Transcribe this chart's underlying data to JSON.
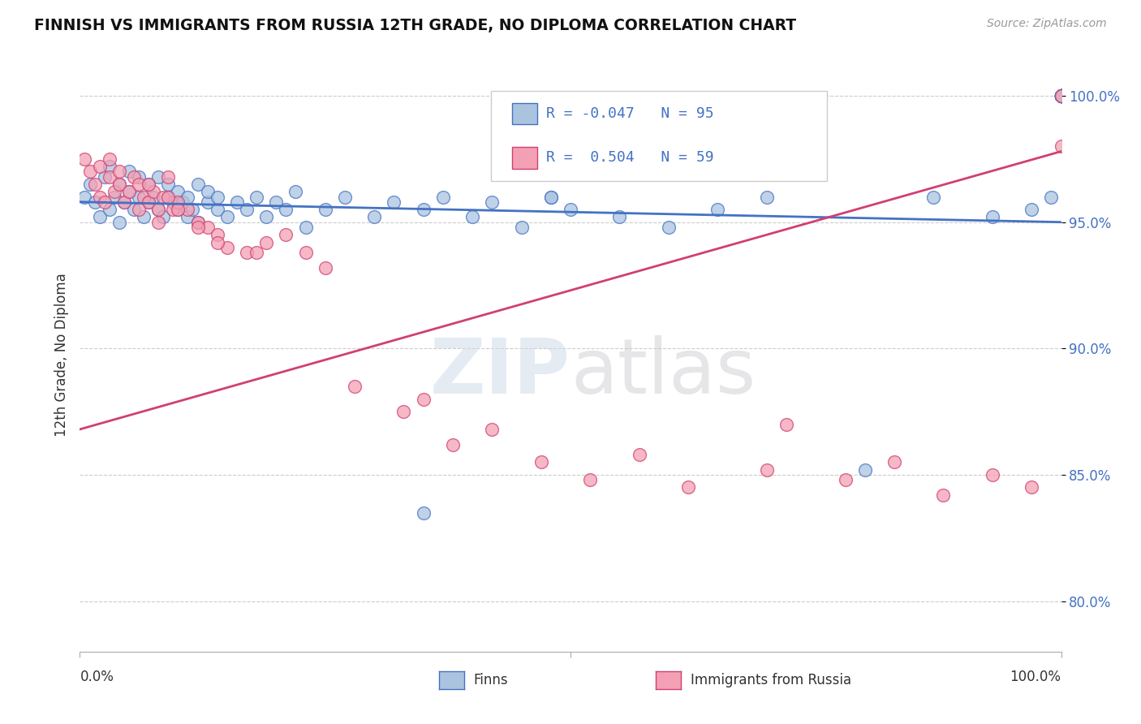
{
  "title": "FINNISH VS IMMIGRANTS FROM RUSSIA 12TH GRADE, NO DIPLOMA CORRELATION CHART",
  "source": "Source: ZipAtlas.com",
  "ylabel": "12th Grade, No Diploma",
  "xmin": 0.0,
  "xmax": 1.0,
  "ymin": 0.78,
  "ymax": 1.015,
  "yticks": [
    0.8,
    0.85,
    0.9,
    0.95,
    1.0
  ],
  "ytick_labels": [
    "80.0%",
    "85.0%",
    "90.0%",
    "95.0%",
    "100.0%"
  ],
  "legend_r1": "-0.047",
  "legend_n1": "95",
  "legend_r2": " 0.504",
  "legend_n2": "59",
  "color_finns": "#aac4e0",
  "color_russia": "#f4a0b4",
  "color_line_finns": "#4472c4",
  "color_line_russia": "#d04070",
  "background_color": "#ffffff",
  "watermark_zip": "ZIP",
  "watermark_atlas": "atlas",
  "finns_x": [
    0.005,
    0.01,
    0.015,
    0.02,
    0.025,
    0.03,
    0.03,
    0.035,
    0.04,
    0.04,
    0.045,
    0.05,
    0.05,
    0.055,
    0.06,
    0.06,
    0.065,
    0.07,
    0.07,
    0.075,
    0.08,
    0.08,
    0.085,
    0.09,
    0.09,
    0.095,
    0.1,
    0.1,
    0.105,
    0.11,
    0.11,
    0.115,
    0.12,
    0.12,
    0.13,
    0.13,
    0.14,
    0.14,
    0.15,
    0.16,
    0.17,
    0.18,
    0.19,
    0.2,
    0.21,
    0.22,
    0.23,
    0.25,
    0.27,
    0.3,
    0.32,
    0.35,
    0.37,
    0.4,
    0.42,
    0.45,
    0.48,
    0.5,
    0.35,
    0.48,
    0.55,
    0.6,
    0.65,
    0.7,
    0.8,
    0.87,
    0.93,
    0.97,
    0.99,
    1.0,
    1.0,
    1.0,
    1.0,
    1.0,
    1.0,
    1.0,
    1.0,
    1.0,
    1.0,
    1.0,
    1.0,
    1.0,
    1.0,
    1.0,
    1.0,
    1.0,
    1.0,
    1.0,
    1.0,
    1.0,
    1.0,
    1.0,
    1.0,
    1.0,
    1.0
  ],
  "finns_y": [
    0.96,
    0.965,
    0.958,
    0.952,
    0.968,
    0.955,
    0.972,
    0.96,
    0.965,
    0.95,
    0.958,
    0.962,
    0.97,
    0.955,
    0.96,
    0.968,
    0.952,
    0.958,
    0.965,
    0.96,
    0.955,
    0.968,
    0.952,
    0.96,
    0.965,
    0.958,
    0.955,
    0.962,
    0.958,
    0.952,
    0.96,
    0.955,
    0.965,
    0.95,
    0.958,
    0.962,
    0.955,
    0.96,
    0.952,
    0.958,
    0.955,
    0.96,
    0.952,
    0.958,
    0.955,
    0.962,
    0.948,
    0.955,
    0.96,
    0.952,
    0.958,
    0.955,
    0.96,
    0.952,
    0.958,
    0.948,
    0.96,
    0.955,
    0.835,
    0.96,
    0.952,
    0.948,
    0.955,
    0.96,
    0.852,
    0.96,
    0.952,
    0.955,
    0.96,
    1.0,
    1.0,
    1.0,
    1.0,
    1.0,
    1.0,
    1.0,
    1.0,
    1.0,
    1.0,
    1.0,
    1.0,
    1.0,
    1.0,
    1.0,
    1.0,
    1.0,
    1.0,
    1.0,
    1.0,
    1.0,
    1.0,
    1.0,
    1.0,
    1.0,
    1.0
  ],
  "russia_x": [
    0.005,
    0.01,
    0.015,
    0.02,
    0.02,
    0.025,
    0.03,
    0.03,
    0.035,
    0.04,
    0.04,
    0.045,
    0.05,
    0.055,
    0.06,
    0.065,
    0.07,
    0.075,
    0.08,
    0.085,
    0.09,
    0.095,
    0.1,
    0.11,
    0.12,
    0.13,
    0.14,
    0.15,
    0.17,
    0.19,
    0.21,
    0.23,
    0.28,
    0.33,
    0.38,
    0.42,
    0.47,
    0.52,
    0.57,
    0.62,
    0.7,
    0.72,
    0.78,
    0.83,
    0.88,
    0.93,
    0.97,
    1.0,
    1.0,
    0.06,
    0.07,
    0.08,
    0.09,
    0.1,
    0.12,
    0.14,
    0.18,
    0.25,
    0.35
  ],
  "russia_y": [
    0.975,
    0.97,
    0.965,
    0.96,
    0.972,
    0.958,
    0.968,
    0.975,
    0.962,
    0.965,
    0.97,
    0.958,
    0.962,
    0.968,
    0.965,
    0.96,
    0.958,
    0.962,
    0.955,
    0.96,
    0.968,
    0.955,
    0.958,
    0.955,
    0.95,
    0.948,
    0.945,
    0.94,
    0.938,
    0.942,
    0.945,
    0.938,
    0.885,
    0.875,
    0.862,
    0.868,
    0.855,
    0.848,
    0.858,
    0.845,
    0.852,
    0.87,
    0.848,
    0.855,
    0.842,
    0.85,
    0.845,
    0.98,
    1.0,
    0.955,
    0.965,
    0.95,
    0.96,
    0.955,
    0.948,
    0.942,
    0.938,
    0.932,
    0.88
  ]
}
